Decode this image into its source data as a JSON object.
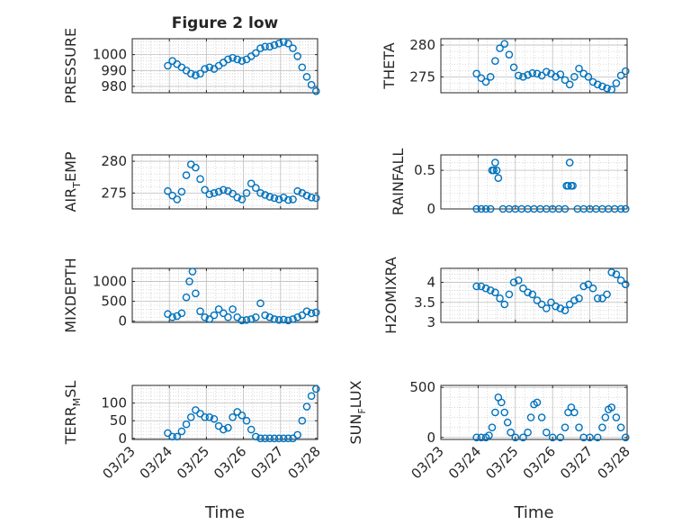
{
  "chart_data": [
    {
      "type": "scatter",
      "title": "Figure 2 low",
      "ylabel": "PRESSURE",
      "xlabel": "",
      "xlim": [
        "03/23",
        "03/28"
      ],
      "ylim": [
        976,
        1010
      ],
      "yticks": [
        980,
        990,
        1000
      ],
      "xticks": [],
      "marker_color": "#0072BD",
      "series": [
        {
          "x": [
            "03/23 23:00",
            "03/24 02:00",
            "03/24 05:00",
            "03/24 08:00",
            "03/24 11:00",
            "03/24 14:00",
            "03/24 17:00",
            "03/24 20:00",
            "03/24 23:00",
            "03/25 02:00",
            "03/25 05:00",
            "03/25 08:00",
            "03/25 11:00",
            "03/25 14:00",
            "03/25 17:00",
            "03/25 20:00",
            "03/25 23:00",
            "03/26 02:00",
            "03/26 05:00",
            "03/26 08:00",
            "03/26 11:00",
            "03/26 14:00",
            "03/26 17:00",
            "03/26 20:00",
            "03/26 23:00",
            "03/27 02:00",
            "03/27 05:00",
            "03/27 08:00",
            "03/27 11:00",
            "03/27 14:00",
            "03/27 17:00",
            "03/27 20:00",
            "03/27 23:00"
          ],
          "y": [
            993,
            996,
            994,
            992,
            990,
            988,
            987,
            988,
            991,
            992,
            991,
            993,
            995,
            997,
            998,
            997,
            996,
            997,
            999,
            1001,
            1004,
            1005,
            1005,
            1006,
            1007,
            1008,
            1007,
            1004,
            999,
            992,
            986,
            981,
            977
          ]
        }
      ]
    },
    {
      "type": "scatter",
      "ylabel": "THETA",
      "xlabel": "",
      "xlim": [
        "03/23",
        "03/28"
      ],
      "ylim": [
        272.5,
        281
      ],
      "yticks": [
        275,
        280
      ],
      "xticks": [],
      "marker_color": "#0072BD",
      "series": [
        {
          "x": [
            "03/23 23:00",
            "03/24 02:00",
            "03/24 05:00",
            "03/24 08:00",
            "03/24 11:00",
            "03/24 14:00",
            "03/24 17:00",
            "03/24 20:00",
            "03/24 23:00",
            "03/25 02:00",
            "03/25 05:00",
            "03/25 08:00",
            "03/25 11:00",
            "03/25 14:00",
            "03/25 17:00",
            "03/25 20:00",
            "03/25 23:00",
            "03/26 02:00",
            "03/26 05:00",
            "03/26 08:00",
            "03/26 11:00",
            "03/26 14:00",
            "03/26 17:00",
            "03/26 20:00",
            "03/26 23:00",
            "03/27 02:00",
            "03/27 05:00",
            "03/27 08:00",
            "03/27 11:00",
            "03/27 14:00",
            "03/27 17:00",
            "03/27 20:00",
            "03/27 23:00"
          ],
          "y": [
            275.5,
            274.8,
            274.2,
            275.0,
            277.5,
            279.5,
            280.2,
            278.5,
            276.5,
            275.2,
            275.0,
            275.3,
            275.6,
            275.5,
            275.2,
            275.8,
            275.5,
            275.0,
            275.4,
            274.5,
            273.8,
            275.0,
            276.3,
            275.5,
            275.0,
            274.2,
            273.8,
            273.5,
            273.2,
            273.0,
            274.0,
            275.2,
            275.9
          ]
        }
      ]
    },
    {
      "type": "scatter",
      "ylabel": "AIR_TEMP",
      "ylabel_display": "AIR",
      "ylabel_sub": "T",
      "ylabel_tail": "EMP",
      "xlabel": "",
      "xlim": [
        "03/23",
        "03/28"
      ],
      "ylim": [
        272.5,
        281
      ],
      "yticks": [
        275,
        280
      ],
      "xticks": [],
      "marker_color": "#0072BD",
      "series": [
        {
          "x": [
            "03/23 23:00",
            "03/24 02:00",
            "03/24 05:00",
            "03/24 08:00",
            "03/24 11:00",
            "03/24 14:00",
            "03/24 17:00",
            "03/24 20:00",
            "03/24 23:00",
            "03/25 02:00",
            "03/25 05:00",
            "03/25 08:00",
            "03/25 11:00",
            "03/25 14:00",
            "03/25 17:00",
            "03/25 20:00",
            "03/25 23:00",
            "03/26 02:00",
            "03/26 05:00",
            "03/26 08:00",
            "03/26 11:00",
            "03/26 14:00",
            "03/26 17:00",
            "03/26 20:00",
            "03/26 23:00",
            "03/27 02:00",
            "03/27 05:00",
            "03/27 08:00",
            "03/27 11:00",
            "03/27 14:00",
            "03/27 17:00",
            "03/27 20:00",
            "03/27 23:00"
          ],
          "y": [
            275.3,
            274.6,
            274.0,
            275.2,
            277.8,
            279.5,
            279.0,
            277.2,
            275.5,
            274.8,
            275.0,
            275.2,
            275.5,
            275.3,
            274.9,
            274.3,
            274.0,
            275.0,
            276.5,
            275.8,
            275.0,
            274.7,
            274.4,
            274.2,
            274.0,
            274.3,
            273.9,
            274.0,
            275.3,
            275.0,
            274.6,
            274.3,
            274.2
          ]
        }
      ]
    },
    {
      "type": "scatter",
      "ylabel": "RAINFALL",
      "xlabel": "",
      "xlim": [
        "03/23",
        "03/28"
      ],
      "ylim": [
        0,
        0.7
      ],
      "yticks": [
        0,
        0.5
      ],
      "xticks": [],
      "marker_color": "#0072BD",
      "series": [
        {
          "x": [
            "03/23 23:00",
            "03/24 02:00",
            "03/24 05:00",
            "03/24 08:00",
            "03/24 09:00",
            "03/24 10:00",
            "03/24 11:00",
            "03/24 12:00",
            "03/24 13:00",
            "03/24 16:00",
            "03/24 20:00",
            "03/25 00:00",
            "03/25 04:00",
            "03/25 08:00",
            "03/25 12:00",
            "03/25 16:00",
            "03/25 20:00",
            "03/26 00:00",
            "03/26 04:00",
            "03/26 08:00",
            "03/26 09:00",
            "03/26 10:00",
            "03/26 11:00",
            "03/26 12:00",
            "03/26 13:00",
            "03/26 16:00",
            "03/26 20:00",
            "03/27 00:00",
            "03/27 04:00",
            "03/27 08:00",
            "03/27 12:00",
            "03/27 16:00",
            "03/27 20:00",
            "03/27 23:00"
          ],
          "y": [
            0,
            0,
            0,
            0,
            0.5,
            0.5,
            0.6,
            0.5,
            0.4,
            0,
            0,
            0,
            0,
            0,
            0,
            0,
            0,
            0,
            0,
            0,
            0.3,
            0.3,
            0.6,
            0.3,
            0.3,
            0,
            0,
            0,
            0,
            0,
            0,
            0,
            0,
            0
          ]
        }
      ]
    },
    {
      "type": "scatter",
      "ylabel": "MIXDEPTH",
      "xlabel": "",
      "xlim": [
        "03/23",
        "03/28"
      ],
      "ylim": [
        -30,
        1330
      ],
      "yticks": [
        0,
        500,
        1000
      ],
      "xticks": [],
      "marker_color": "#0072BD",
      "series": [
        {
          "x": [
            "03/23 23:00",
            "03/24 02:00",
            "03/24 05:00",
            "03/24 08:00",
            "03/24 11:00",
            "03/24 13:00",
            "03/24 15:00",
            "03/24 17:00",
            "03/24 20:00",
            "03/24 23:00",
            "03/25 02:00",
            "03/25 05:00",
            "03/25 08:00",
            "03/25 11:00",
            "03/25 14:00",
            "03/25 17:00",
            "03/25 20:00",
            "03/25 23:00",
            "03/26 02:00",
            "03/26 05:00",
            "03/26 08:00",
            "03/26 11:00",
            "03/26 14:00",
            "03/26 17:00",
            "03/26 20:00",
            "03/26 23:00",
            "03/27 02:00",
            "03/27 05:00",
            "03/27 08:00",
            "03/27 11:00",
            "03/27 14:00",
            "03/27 17:00",
            "03/27 20:00",
            "03/27 23:00"
          ],
          "y": [
            180,
            100,
            130,
            200,
            600,
            1000,
            1250,
            700,
            250,
            100,
            50,
            150,
            300,
            200,
            100,
            300,
            100,
            20,
            30,
            50,
            100,
            450,
            150,
            100,
            50,
            30,
            40,
            20,
            50,
            100,
            150,
            250,
            200,
            220
          ]
        }
      ]
    },
    {
      "type": "scatter",
      "ylabel": "H2OMIXRA",
      "xlabel": "",
      "xlim": [
        "03/23",
        "03/28"
      ],
      "ylim": [
        3,
        4.35
      ],
      "yticks": [
        3,
        3.5,
        4
      ],
      "xticks": [],
      "marker_color": "#0072BD",
      "series": [
        {
          "x": [
            "03/23 23:00",
            "03/24 02:00",
            "03/24 05:00",
            "03/24 08:00",
            "03/24 11:00",
            "03/24 14:00",
            "03/24 17:00",
            "03/24 20:00",
            "03/24 23:00",
            "03/25 02:00",
            "03/25 05:00",
            "03/25 08:00",
            "03/25 11:00",
            "03/25 14:00",
            "03/25 17:00",
            "03/25 20:00",
            "03/25 23:00",
            "03/26 02:00",
            "03/26 05:00",
            "03/26 08:00",
            "03/26 11:00",
            "03/26 14:00",
            "03/26 17:00",
            "03/26 20:00",
            "03/26 23:00",
            "03/27 02:00",
            "03/27 05:00",
            "03/27 08:00",
            "03/27 11:00",
            "03/27 14:00",
            "03/27 17:00",
            "03/27 20:00",
            "03/27 23:00"
          ],
          "y": [
            3.9,
            3.9,
            3.85,
            3.8,
            3.75,
            3.6,
            3.45,
            3.7,
            4.0,
            4.05,
            3.85,
            3.75,
            3.7,
            3.55,
            3.45,
            3.35,
            3.5,
            3.4,
            3.35,
            3.3,
            3.45,
            3.55,
            3.6,
            3.9,
            3.95,
            3.85,
            3.6,
            3.6,
            3.7,
            4.25,
            4.2,
            4.05,
            3.95
          ]
        }
      ]
    },
    {
      "type": "scatter",
      "ylabel": "TERR_MSL",
      "ylabel_display": "TERR",
      "ylabel_sub": "M",
      "ylabel_tail": "SL",
      "xlabel": "Time",
      "xlim": [
        "03/23",
        "03/28"
      ],
      "ylim": [
        -3,
        150
      ],
      "yticks": [
        0,
        50,
        100
      ],
      "xticks": [
        "03/23",
        "03/24",
        "03/25",
        "03/26",
        "03/27",
        "03/28"
      ],
      "marker_color": "#0072BD",
      "series": [
        {
          "x": [
            "03/23 23:00",
            "03/24 02:00",
            "03/24 05:00",
            "03/24 08:00",
            "03/24 11:00",
            "03/24 14:00",
            "03/24 17:00",
            "03/24 20:00",
            "03/24 23:00",
            "03/25 02:00",
            "03/25 05:00",
            "03/25 08:00",
            "03/25 11:00",
            "03/25 14:00",
            "03/25 17:00",
            "03/25 20:00",
            "03/25 23:00",
            "03/26 02:00",
            "03/26 05:00",
            "03/26 08:00",
            "03/26 11:00",
            "03/26 14:00",
            "03/26 17:00",
            "03/26 20:00",
            "03/26 23:00",
            "03/27 02:00",
            "03/27 05:00",
            "03/27 08:00",
            "03/27 11:00",
            "03/27 14:00",
            "03/27 17:00",
            "03/27 20:00",
            "03/27 23:00"
          ],
          "y": [
            15,
            5,
            5,
            20,
            40,
            60,
            80,
            70,
            60,
            60,
            55,
            35,
            25,
            30,
            60,
            75,
            65,
            50,
            25,
            5,
            0,
            0,
            0,
            0,
            0,
            0,
            0,
            0,
            10,
            50,
            90,
            120,
            140
          ]
        }
      ]
    },
    {
      "type": "scatter",
      "ylabel": "SUN_FLUX",
      "ylabel_display": "SUN",
      "ylabel_sub": "F",
      "ylabel_tail": "LUX",
      "xlabel": "Time",
      "xlim": [
        "03/23",
        "03/28"
      ],
      "ylim": [
        -20,
        520
      ],
      "yticks": [
        0,
        500
      ],
      "xticks": [
        "03/23",
        "03/24",
        "03/25",
        "03/26",
        "03/27",
        "03/28"
      ],
      "marker_color": "#0072BD",
      "series": [
        {
          "x": [
            "03/23 23:00",
            "03/24 02:00",
            "03/24 05:00",
            "03/24 07:00",
            "03/24 09:00",
            "03/24 11:00",
            "03/24 13:00",
            "03/24 15:00",
            "03/24 17:00",
            "03/24 19:00",
            "03/24 21:00",
            "03/25 00:00",
            "03/25 05:00",
            "03/25 08:00",
            "03/25 10:00",
            "03/25 12:00",
            "03/25 14:00",
            "03/25 17:00",
            "03/25 20:00",
            "03/26 00:00",
            "03/26 05:00",
            "03/26 08:00",
            "03/26 10:00",
            "03/26 12:00",
            "03/26 14:00",
            "03/26 17:00",
            "03/26 20:00",
            "03/27 00:00",
            "03/27 05:00",
            "03/27 08:00",
            "03/27 10:00",
            "03/27 12:00",
            "03/27 14:00",
            "03/27 17:00",
            "03/27 20:00",
            "03/27 23:00"
          ],
          "y": [
            0,
            0,
            0,
            20,
            100,
            250,
            400,
            350,
            250,
            150,
            50,
            0,
            0,
            50,
            200,
            330,
            350,
            200,
            50,
            0,
            0,
            100,
            250,
            300,
            250,
            100,
            0,
            0,
            0,
            100,
            200,
            280,
            300,
            200,
            100,
            0
          ]
        }
      ]
    }
  ]
}
